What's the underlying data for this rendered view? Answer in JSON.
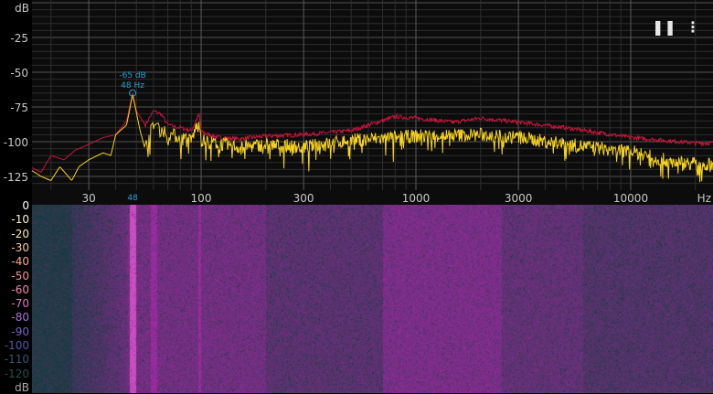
{
  "controls": {
    "pause_icon": "pause-icon",
    "menu_icon": "more-vert-icon"
  },
  "chart_data": {
    "type": "line",
    "x_scale": "log",
    "xlim": [
      16,
      24000
    ],
    "ylim": [
      -135,
      0
    ],
    "ylabel": "dB",
    "xlabel": "Hz",
    "y_ticks": [
      -25,
      -50,
      -75,
      -100,
      -125
    ],
    "x_ticks": [
      30,
      100,
      300,
      1000,
      3000,
      10000
    ],
    "x_tick_labels": [
      "30",
      "100",
      "300",
      "1000",
      "3000",
      "10000"
    ],
    "grid": true,
    "colors": {
      "peak_hold": "#c8143c",
      "current": "#f5d21e",
      "marker": "#2a9fd6"
    },
    "series": [
      {
        "key": "peak_hold",
        "points": [
          [
            16,
            -118
          ],
          [
            18,
            -122
          ],
          [
            20,
            -110
          ],
          [
            23,
            -113
          ],
          [
            26,
            -106
          ],
          [
            30,
            -102
          ],
          [
            35,
            -97
          ],
          [
            40,
            -95
          ],
          [
            45,
            -85
          ],
          [
            48,
            -65
          ],
          [
            50,
            -78
          ],
          [
            55,
            -88
          ],
          [
            60,
            -78
          ],
          [
            65,
            -80
          ],
          [
            70,
            -88
          ],
          [
            80,
            -90
          ],
          [
            90,
            -92
          ],
          [
            98,
            -80
          ],
          [
            100,
            -93
          ],
          [
            120,
            -97
          ],
          [
            150,
            -98
          ],
          [
            200,
            -96
          ],
          [
            300,
            -95
          ],
          [
            500,
            -92
          ],
          [
            800,
            -82
          ],
          [
            1000,
            -83
          ],
          [
            1500,
            -86
          ],
          [
            2000,
            -83
          ],
          [
            3000,
            -86
          ],
          [
            5000,
            -90
          ],
          [
            10000,
            -97
          ],
          [
            20000,
            -101
          ],
          [
            24000,
            -101
          ]
        ]
      },
      {
        "key": "current",
        "points": [
          [
            16,
            -120
          ],
          [
            18,
            -125
          ],
          [
            20,
            -128
          ],
          [
            22,
            -118
          ],
          [
            25,
            -128
          ],
          [
            27,
            -118
          ],
          [
            30,
            -113
          ],
          [
            35,
            -108
          ],
          [
            38,
            -110
          ],
          [
            40,
            -95
          ],
          [
            45,
            -88
          ],
          [
            48,
            -66
          ],
          [
            52,
            -92
          ],
          [
            55,
            -106
          ],
          [
            60,
            -88
          ],
          [
            65,
            -92
          ],
          [
            70,
            -95
          ],
          [
            80,
            -98
          ],
          [
            90,
            -100
          ],
          [
            98,
            -85
          ],
          [
            100,
            -100
          ],
          [
            150,
            -105
          ],
          [
            200,
            -103
          ],
          [
            300,
            -105
          ],
          [
            500,
            -100
          ],
          [
            1000,
            -97
          ],
          [
            2000,
            -96
          ],
          [
            3000,
            -98
          ],
          [
            5000,
            -103
          ],
          [
            10000,
            -108
          ],
          [
            15000,
            -115
          ],
          [
            24000,
            -118
          ]
        ]
      }
    ],
    "peak_marker": {
      "freq": 48,
      "db": -65,
      "db_label": "-65 dB",
      "hz_label": "48 Hz",
      "axis_label": "48"
    }
  },
  "spectrogram": {
    "scale_unit": "dB",
    "scale": [
      {
        "label": "0",
        "color": "#ffffff"
      },
      {
        "label": "-10",
        "color": "#fff5d0"
      },
      {
        "label": "-20",
        "color": "#ffe8a8"
      },
      {
        "label": "-30",
        "color": "#ffc890"
      },
      {
        "label": "-40",
        "color": "#ffa880"
      },
      {
        "label": "-50",
        "color": "#f89090"
      },
      {
        "label": "-60",
        "color": "#f088a8"
      },
      {
        "label": "-70",
        "color": "#d878c8"
      },
      {
        "label": "-80",
        "color": "#a870d8"
      },
      {
        "label": "-90",
        "color": "#7860c8"
      },
      {
        "label": "-100",
        "color": "#5058a8"
      },
      {
        "label": "-110",
        "color": "#305878"
      },
      {
        "label": "-120",
        "color": "#285048"
      }
    ]
  }
}
